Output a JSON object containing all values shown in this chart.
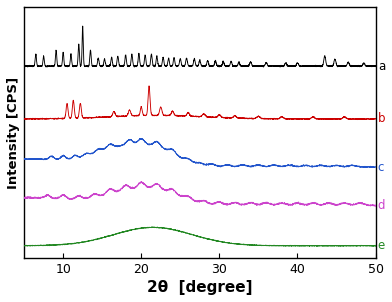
{
  "title": "",
  "xlabel": "2θ  [degree]",
  "ylabel": "Intensity [CPS]",
  "xlim": [
    5,
    50
  ],
  "ylim": [
    0,
    1.05
  ],
  "xticks": [
    10,
    20,
    30,
    40,
    50
  ],
  "colors": {
    "a": "#000000",
    "b": "#cc0000",
    "c": "#2255cc",
    "d": "#cc44cc",
    "e": "#228822"
  },
  "labels": {
    "a": "a",
    "b": "b",
    "c": "c",
    "d": "d",
    "e": "e"
  },
  "offsets": {
    "a": 0.8,
    "b": 0.58,
    "c": 0.38,
    "d": 0.22,
    "e": 0.05
  },
  "scales": {
    "a": 0.17,
    "b": 0.14,
    "c": 0.12,
    "d": 0.1,
    "e": 0.08
  },
  "background_color": "#ffffff"
}
